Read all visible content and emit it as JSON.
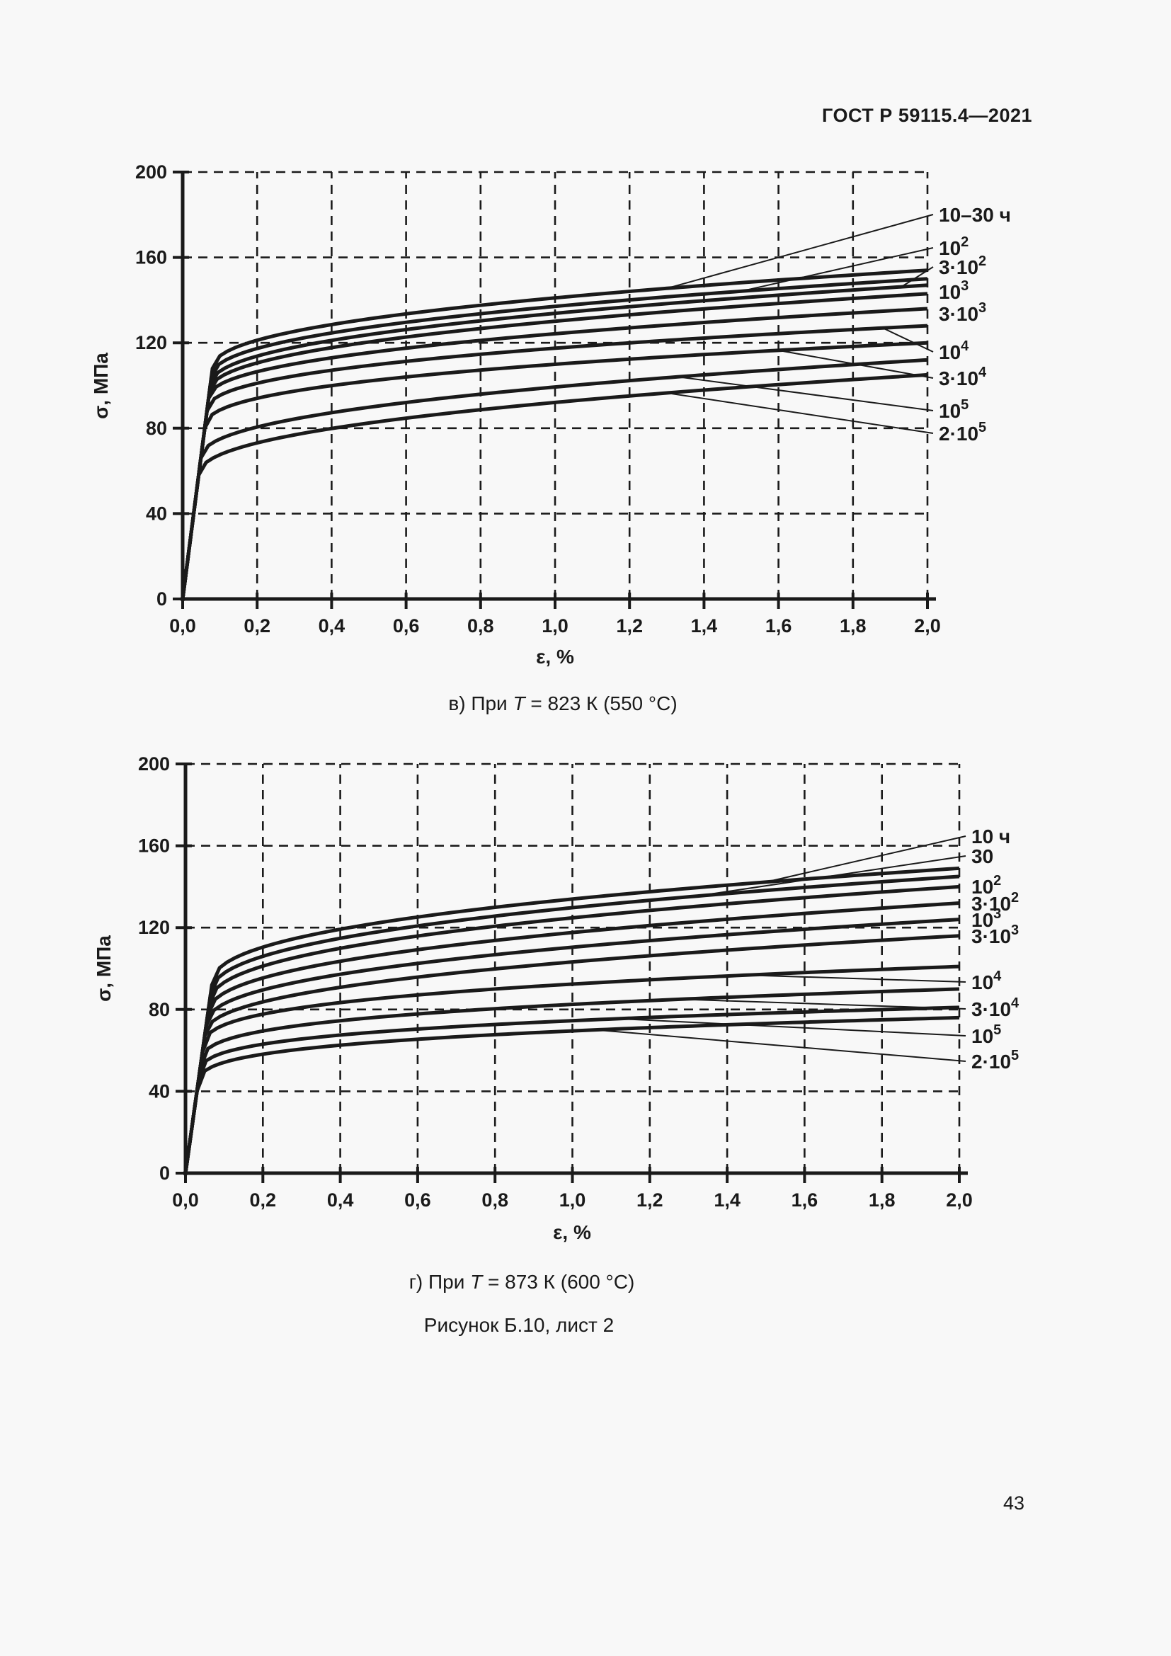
{
  "page": {
    "header": "ГОСТ Р 59115.4—2021",
    "figure_caption": "Рисунок Б.10, лист 2",
    "page_number": "43",
    "background": "#f8f8f8",
    "ink_color": "#1a1a1a"
  },
  "chart_data": [
    {
      "type": "line",
      "title": "в) При T = 823 К (550 °С)",
      "caption": {
        "prefix": "в) При ",
        "var": "T",
        "rest": " = 823 К (550 °С)"
      },
      "xlabel": "ε, %",
      "ylabel": "σ, МПа",
      "xlim": [
        0,
        2
      ],
      "ylim": [
        0,
        200
      ],
      "grid": "dashed",
      "legend_position": "right-outside-leader-lines",
      "y_ticks": [
        0,
        40,
        80,
        120,
        160,
        200
      ],
      "x_ticks": [
        {
          "v": 0.0,
          "label": "0,0"
        },
        {
          "v": 0.2,
          "label": "0,2"
        },
        {
          "v": 0.4,
          "label": "0,4"
        },
        {
          "v": 0.6,
          "label": "0,6"
        },
        {
          "v": 0.8,
          "label": "0,8"
        },
        {
          "v": 1.0,
          "label": "1,0"
        },
        {
          "v": 1.2,
          "label": "1,2"
        },
        {
          "v": 1.4,
          "label": "1,4"
        },
        {
          "v": 1.6,
          "label": "1,6"
        },
        {
          "v": 1.8,
          "label": "1,8"
        },
        {
          "v": 2.0,
          "label": "2,0"
        }
      ],
      "elastic_modulus_mpa_per_percent": 1350,
      "series_note": "hold time labels in hours; yield = stress at onset of plastic branch, end = stress at strain 2 %",
      "series": [
        {
          "label": "10–30 ч",
          "text": "10–30 ч",
          "sup": "",
          "yield": 108,
          "end": 154,
          "p": 0.45,
          "leader_eps": 1.3,
          "label_y": 303
        },
        {
          "label": "10²",
          "text": "10",
          "sup": "2",
          "yield": 104,
          "end": 150,
          "p": 0.45,
          "leader_eps": 1.5,
          "label_y": 350
        },
        {
          "label": "3·10²",
          "text": "3·10",
          "sup": "2",
          "yield": 100,
          "end": 147,
          "p": 0.45,
          "leader_eps": 1.93,
          "label_y": 377
        },
        {
          "label": "10³",
          "text": "10",
          "sup": "3",
          "yield": 97,
          "end": 143,
          "p": 0.45,
          "leader_eps": null,
          "label_y": 412
        },
        {
          "label": "3·10³",
          "text": "3·10",
          "sup": "3",
          "yield": 94,
          "end": 136,
          "p": 0.45,
          "leader_eps": null,
          "label_y": 443
        },
        {
          "label": "10⁴",
          "text": "10",
          "sup": "4",
          "yield": 88,
          "end": 128,
          "p": 0.42,
          "leader_eps": 1.88,
          "label_y": 497
        },
        {
          "label": "3·10⁴",
          "text": "3·10",
          "sup": "4",
          "yield": 80,
          "end": 120,
          "p": 0.4,
          "leader_eps": 1.6,
          "label_y": 534
        },
        {
          "label": "10⁵",
          "text": "10",
          "sup": "5",
          "yield": 66,
          "end": 112,
          "p": 0.45,
          "leader_eps": 1.33,
          "label_y": 580
        },
        {
          "label": "2·10⁵",
          "text": "2·10",
          "sup": "5",
          "yield": 58,
          "end": 105,
          "p": 0.45,
          "leader_eps": 1.3,
          "label_y": 612
        }
      ]
    },
    {
      "type": "line",
      "title": "г) При T = 873 К (600 °С)",
      "caption": {
        "prefix": "г) При ",
        "var": "T",
        "rest": " = 873 К (600 °С)"
      },
      "xlabel": "ε, %",
      "ylabel": "σ, МПа",
      "xlim": [
        0,
        2
      ],
      "ylim": [
        0,
        200
      ],
      "grid": "dashed",
      "legend_position": "right-outside-leader-lines",
      "y_ticks": [
        0,
        40,
        80,
        120,
        160,
        200
      ],
      "x_ticks": [
        {
          "v": 0.0,
          "label": "0,0"
        },
        {
          "v": 0.2,
          "label": "0,2"
        },
        {
          "v": 0.4,
          "label": "0,4"
        },
        {
          "v": 0.6,
          "label": "0,6"
        },
        {
          "v": 0.8,
          "label": "0,8"
        },
        {
          "v": 1.0,
          "label": "1,0"
        },
        {
          "v": 1.2,
          "label": "1,2"
        },
        {
          "v": 1.4,
          "label": "1,4"
        },
        {
          "v": 1.6,
          "label": "1,6"
        },
        {
          "v": 1.8,
          "label": "1,8"
        },
        {
          "v": 2.0,
          "label": "2,0"
        }
      ],
      "elastic_modulus_mpa_per_percent": 1350,
      "series_note": "hold time labels in hours; yield = stress at onset of plastic branch, end = stress at strain 2 %",
      "series": [
        {
          "label": "10 ч",
          "text": "10 ч",
          "sup": "",
          "yield": 92,
          "end": 149,
          "p": 0.42,
          "leader_eps": 1.5,
          "label_y": 1181
        },
        {
          "label": "30",
          "text": "30",
          "sup": "",
          "yield": 87,
          "end": 145,
          "p": 0.42,
          "leader_eps": 1.32,
          "label_y": 1209
        },
        {
          "label": "10²",
          "text": "10",
          "sup": "2",
          "yield": 82,
          "end": 140,
          "p": 0.42,
          "leader_eps": null,
          "label_y": 1252
        },
        {
          "label": "3·10²",
          "text": "3·10",
          "sup": "2",
          "yield": 77,
          "end": 132,
          "p": 0.42,
          "leader_eps": null,
          "label_y": 1276
        },
        {
          "label": "10³",
          "text": "10",
          "sup": "3",
          "yield": 72,
          "end": 124,
          "p": 0.42,
          "leader_eps": null,
          "label_y": 1299
        },
        {
          "label": "3·10³",
          "text": "3·10",
          "sup": "3",
          "yield": 67,
          "end": 116,
          "p": 0.42,
          "leader_eps": null,
          "label_y": 1322
        },
        {
          "label": "10⁴",
          "text": "10",
          "sup": "4",
          "yield": 59,
          "end": 101,
          "p": 0.32,
          "leader_eps": 1.45,
          "label_y": 1387
        },
        {
          "label": "3·10⁴",
          "text": "3·10",
          "sup": "4",
          "yield": 51,
          "end": 90,
          "p": 0.3,
          "leader_eps": 1.28,
          "label_y": 1425
        },
        {
          "label": "10⁵",
          "text": "10",
          "sup": "5",
          "yield": 45,
          "end": 81,
          "p": 0.28,
          "leader_eps": 1.12,
          "label_y": 1463
        },
        {
          "label": "2·10⁵",
          "text": "2·10",
          "sup": "5",
          "yield": 40,
          "end": 76,
          "p": 0.28,
          "leader_eps": 1.06,
          "label_y": 1499
        }
      ]
    }
  ]
}
